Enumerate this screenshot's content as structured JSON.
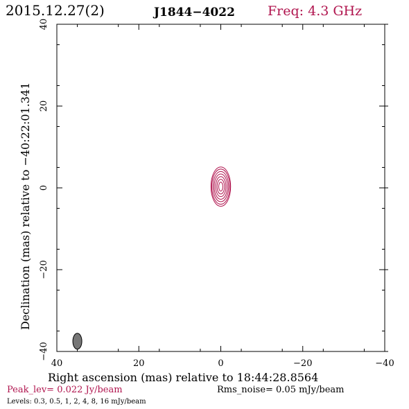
{
  "header": {
    "date": "2015.12.27(2)",
    "source": "J1844−4022",
    "freq": "Freq: 4.3 GHz"
  },
  "footer": {
    "peak": "Peak_lev=  0.022 Jy/beam",
    "rms": "Rms_noise= 0.05 mJy/beam",
    "levels": "Levels: 0.3,  0.5,    1,    2,    4,    8,   16 mJy/beam"
  },
  "colors": {
    "contour": "#b0144e",
    "beam_fill": "#777777",
    "frame": "#000000"
  },
  "chart_data": {
    "type": "contour",
    "xlabel": "Right ascension (mas) relative to 18:44:28.8564",
    "ylabel": "Declination (mas) relative to −40:22:01.341",
    "xlim": [
      40,
      -40
    ],
    "ylim": [
      -40,
      40
    ],
    "xticks": [
      {
        "v": 40,
        "label": "40"
      },
      {
        "v": 20,
        "label": "20"
      },
      {
        "v": 0,
        "label": "0"
      },
      {
        "v": -20,
        "label": "−20"
      },
      {
        "v": -40,
        "label": "−40"
      }
    ],
    "yticks": [
      {
        "v": -40,
        "label": "−40"
      },
      {
        "v": -20,
        "label": "−20"
      },
      {
        "v": 0,
        "label": "0"
      },
      {
        "v": 20,
        "label": "20"
      },
      {
        "v": 40,
        "label": "40"
      }
    ],
    "minor_ticks": true,
    "source_center": [
      0,
      0.3
    ],
    "contour_levels_mjy": [
      0.3,
      0.5,
      1,
      2,
      4,
      8,
      16
    ],
    "contours": [
      {
        "level": 0.3,
        "rx": 2.4,
        "ry": 4.8
      },
      {
        "level": 0.5,
        "rx": 2.2,
        "ry": 4.3
      },
      {
        "level": 1,
        "rx": 1.9,
        "ry": 3.7
      },
      {
        "level": 2,
        "rx": 1.6,
        "ry": 3.1
      },
      {
        "level": 4,
        "rx": 1.25,
        "ry": 2.45
      },
      {
        "level": 8,
        "rx": 0.9,
        "ry": 1.8
      },
      {
        "level": 16,
        "rx": 0.5,
        "ry": 1.1
      }
    ],
    "beam": {
      "x": 35,
      "y": -37.5,
      "major": 3.9,
      "minor": 2.2,
      "pa_deg": 0
    }
  }
}
